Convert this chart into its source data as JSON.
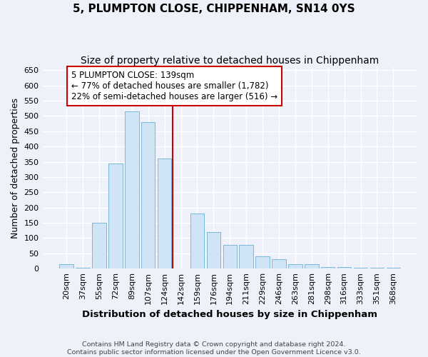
{
  "title": "5, PLUMPTON CLOSE, CHIPPENHAM, SN14 0YS",
  "subtitle": "Size of property relative to detached houses in Chippenham",
  "xlabel": "Distribution of detached houses by size in Chippenham",
  "ylabel": "Number of detached properties",
  "footer_line1": "Contains HM Land Registry data © Crown copyright and database right 2024.",
  "footer_line2": "Contains public sector information licensed under the Open Government Licence v3.0.",
  "categories": [
    "20sqm",
    "37sqm",
    "55sqm",
    "72sqm",
    "89sqm",
    "107sqm",
    "124sqm",
    "142sqm",
    "159sqm",
    "176sqm",
    "194sqm",
    "211sqm",
    "229sqm",
    "246sqm",
    "263sqm",
    "281sqm",
    "298sqm",
    "316sqm",
    "333sqm",
    "351sqm",
    "368sqm"
  ],
  "values": [
    15,
    2,
    150,
    345,
    515,
    480,
    360,
    0,
    180,
    120,
    78,
    78,
    40,
    30,
    14,
    14,
    5,
    5,
    2,
    2,
    2
  ],
  "bar_color": "#cfe4f5",
  "bar_edge_color": "#7ab8db",
  "marker_bin_index": 7,
  "annotation_line1": "5 PLUMPTON CLOSE: 139sqm",
  "annotation_line2": "← 77% of detached houses are smaller (1,782)",
  "annotation_line3": "22% of semi-detached houses are larger (516) →",
  "ylim_max": 660,
  "ytick_step": 50,
  "bg_color": "#eef1fa",
  "grid_color": "#ffffff",
  "title_fontsize": 11,
  "subtitle_fontsize": 10,
  "footer_fontsize": 6.8,
  "tick_fontsize": 8,
  "ylabel_fontsize": 9,
  "xlabel_fontsize": 9.5,
  "annotation_fontsize": 8.5,
  "red_line_color": "#cc0000",
  "ann_box_edge_color": "#cc0000"
}
